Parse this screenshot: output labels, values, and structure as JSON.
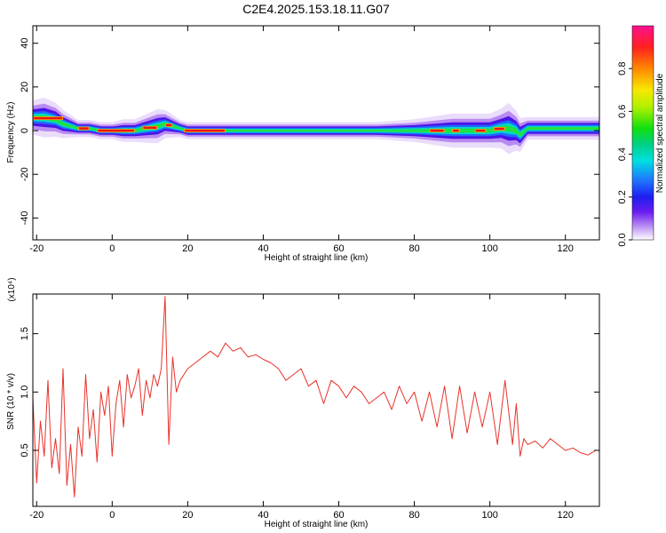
{
  "title": "C2E4.2025.153.18.11.G07",
  "chart_data": [
    {
      "type": "heatmap",
      "xlabel": "Height of straight line (km)",
      "ylabel": "Frequency (Hz)",
      "xlim": [
        -21,
        129
      ],
      "ylim": [
        -50,
        48
      ],
      "xticks": [
        -20,
        0,
        20,
        40,
        60,
        80,
        100,
        120
      ],
      "yticks": [
        -40,
        -20,
        0,
        20,
        40
      ],
      "colorbar": {
        "label": "Normalized spectral amplitude",
        "range": [
          0,
          1
        ],
        "ticks": [
          "0.0",
          "0.2",
          "0.4",
          "0.6",
          "0.8"
        ]
      },
      "ridge": {
        "x": [
          -21,
          -18,
          -15,
          -13,
          -11,
          -9,
          -6,
          -3,
          0,
          3,
          6,
          9,
          12,
          14,
          16,
          18,
          20,
          25,
          30,
          40,
          50,
          60,
          70,
          80,
          85,
          90,
          95,
          100,
          103,
          105,
          107,
          108,
          110,
          115,
          120,
          125,
          129
        ],
        "center": [
          6,
          6,
          5,
          3,
          2,
          1,
          1,
          0,
          0,
          0,
          0,
          1,
          2,
          3,
          2,
          1,
          0,
          0,
          0,
          0,
          0,
          0,
          0,
          0,
          0,
          0,
          0,
          0,
          1,
          1,
          0,
          -2,
          1,
          1,
          1,
          1,
          1
        ],
        "width": [
          6,
          7,
          6,
          5,
          4,
          3,
          3,
          3,
          3,
          4,
          4,
          5,
          6,
          5,
          4,
          3,
          3,
          3,
          3,
          3,
          3,
          3,
          3,
          4,
          5,
          6,
          6,
          6,
          7,
          9,
          7,
          6,
          4,
          4,
          4,
          4,
          4
        ]
      },
      "hot_segments": [
        [
          -21,
          -13
        ],
        [
          -9,
          -6
        ],
        [
          -4,
          6
        ],
        [
          8,
          12
        ],
        [
          14,
          16
        ],
        [
          19,
          30
        ],
        [
          84,
          88
        ],
        [
          90,
          92
        ],
        [
          96,
          99
        ],
        [
          101,
          104
        ]
      ]
    },
    {
      "type": "line",
      "xlabel": "Height of straight line (km)",
      "ylabel": "SNR (10 * v/v)",
      "scale_label": "(x10⁴)",
      "xlim": [
        -21,
        129
      ],
      "ylim": [
        0.02,
        1.84
      ],
      "xticks": [
        -20,
        0,
        20,
        40,
        60,
        80,
        100,
        120
      ],
      "yticks": [
        "0.5",
        "1.0",
        "1.5"
      ],
      "yticks_values": [
        0.5,
        1.0,
        1.5
      ],
      "color": "#e8322a",
      "x": [
        -21,
        -20,
        -19,
        -18,
        -17,
        -16,
        -15,
        -14,
        -13,
        -12,
        -11,
        -10,
        -9,
        -8,
        -7,
        -6,
        -5,
        -4,
        -3,
        -2,
        -1,
        0,
        1,
        2,
        3,
        4,
        5,
        6,
        7,
        8,
        9,
        10,
        11,
        12,
        13,
        14,
        15,
        16,
        17,
        18,
        20,
        22,
        24,
        26,
        28,
        30,
        32,
        34,
        36,
        38,
        40,
        42,
        44,
        46,
        48,
        50,
        52,
        54,
        56,
        58,
        60,
        62,
        64,
        66,
        68,
        70,
        72,
        74,
        76,
        78,
        80,
        82,
        84,
        86,
        88,
        90,
        92,
        94,
        96,
        98,
        100,
        102,
        104,
        106,
        107,
        108,
        109,
        110,
        112,
        114,
        116,
        118,
        120,
        122,
        124,
        126,
        128
      ],
      "y": [
        0.95,
        0.22,
        0.75,
        0.45,
        1.1,
        0.35,
        0.6,
        0.3,
        1.2,
        0.2,
        0.55,
        0.1,
        0.7,
        0.45,
        1.15,
        0.6,
        0.85,
        0.4,
        1.0,
        0.8,
        1.05,
        0.45,
        0.9,
        1.1,
        0.7,
        1.15,
        0.95,
        1.05,
        1.2,
        0.8,
        1.1,
        0.95,
        1.15,
        1.05,
        1.2,
        1.82,
        0.55,
        1.3,
        1.0,
        1.1,
        1.2,
        1.25,
        1.3,
        1.35,
        1.3,
        1.42,
        1.35,
        1.38,
        1.3,
        1.32,
        1.28,
        1.25,
        1.2,
        1.1,
        1.15,
        1.2,
        1.05,
        1.1,
        0.9,
        1.1,
        1.05,
        0.95,
        1.05,
        1.0,
        0.9,
        0.95,
        1.0,
        0.85,
        1.05,
        0.9,
        1.0,
        0.75,
        1.0,
        0.7,
        1.05,
        0.6,
        1.05,
        0.65,
        1.0,
        0.7,
        1.0,
        0.55,
        1.1,
        0.55,
        0.9,
        0.45,
        0.6,
        0.55,
        0.58,
        0.52,
        0.6,
        0.55,
        0.5,
        0.52,
        0.48,
        0.46,
        0.5
      ]
    }
  ]
}
